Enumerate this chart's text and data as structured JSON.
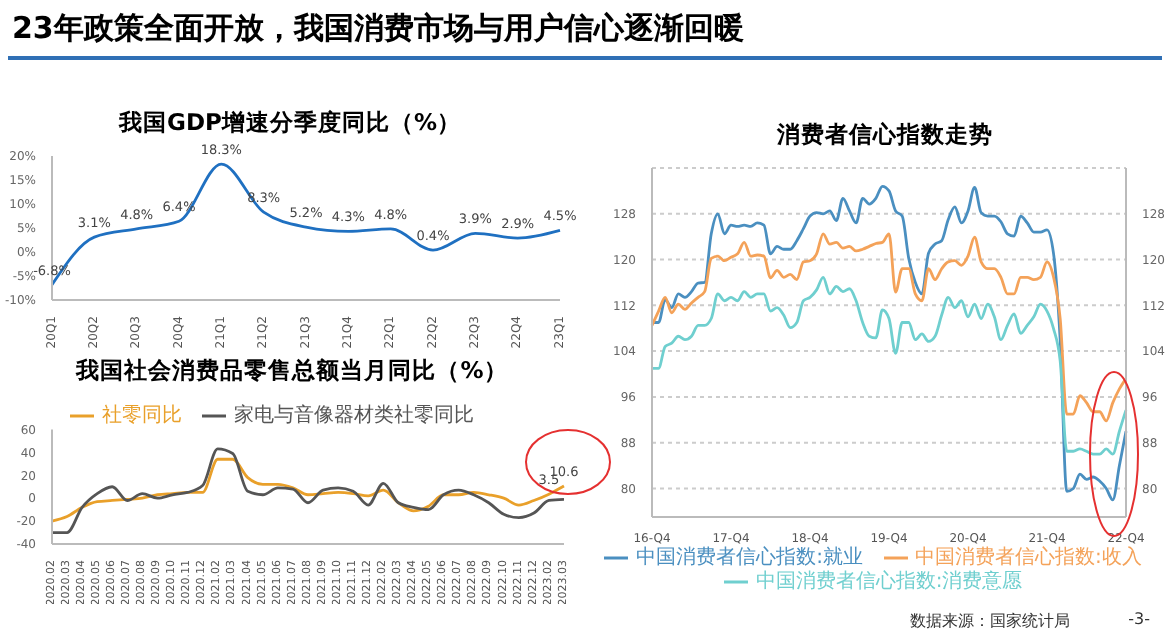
{
  "chart_data": [
    {
      "type": "line",
      "title": "我国GDP增速分季度同比（%）",
      "categories": [
        "20Q1",
        "20Q2",
        "20Q3",
        "20Q4",
        "21Q1",
        "21Q2",
        "21Q3",
        "21Q4",
        "22Q1",
        "22Q2",
        "22Q3",
        "22Q4",
        "23Q1"
      ],
      "series": [
        {
          "color": "#1f70c1",
          "values": [
            -6.8,
            3.1,
            4.8,
            6.4,
            18.3,
            8.3,
            5.2,
            4.3,
            4.8,
            0.4,
            3.9,
            2.9,
            4.5
          ],
          "value_labels": [
            "-6.8%",
            "3.1%",
            "4.8%",
            "6.4%",
            "18.3%",
            "8.3%",
            "5.2%",
            "4.3%",
            "4.8%",
            "0.4%",
            "3.9%",
            "2.9%",
            "4.5%"
          ]
        }
      ],
      "ylim": [
        -10,
        20
      ],
      "yticks": [
        {
          "value": -10,
          "label": "-10%"
        },
        {
          "value": -5,
          "label": "-5%"
        },
        {
          "value": 0,
          "label": "0%"
        },
        {
          "value": 5,
          "label": "5%"
        },
        {
          "value": 10,
          "label": "10%"
        },
        {
          "value": 15,
          "label": "15%"
        },
        {
          "value": 20,
          "label": "20%"
        }
      ],
      "marker": "none",
      "line_style": "solid"
    },
    {
      "type": "line",
      "title": "我国社会消费品零售总额当月同比（%）",
      "categories": [
        "2020.02",
        "2020.03",
        "2020.04",
        "2020.05",
        "2020.06",
        "2020.07",
        "2020.08",
        "2020.09",
        "2020.10",
        "2020.11",
        "2020.12",
        "2021.02",
        "2021.03",
        "2021.04",
        "2021.05",
        "2021.06",
        "2021.07",
        "2021.08",
        "2021.09",
        "2021.10",
        "2021.11",
        "2021.12",
        "2022.02",
        "2022.03",
        "2022.04",
        "2022.05",
        "2022.06",
        "2022.07",
        "2022.08",
        "2022.09",
        "2022.10",
        "2022.11",
        "2022.12",
        "2023.02",
        "2023.03"
      ],
      "series": [
        {
          "name": "社零同比",
          "color": "#e9a02a",
          "values": [
            -20,
            -16,
            -8,
            -3,
            -2,
            -1,
            0,
            3,
            4,
            5,
            5,
            34,
            34,
            18,
            12,
            12,
            9,
            3,
            4,
            5,
            4,
            2,
            7,
            -4,
            -11,
            -7,
            3,
            3,
            5,
            3,
            0,
            -6,
            -2,
            3.5,
            10.6
          ],
          "value_labels": [
            null,
            null,
            null,
            null,
            null,
            null,
            null,
            null,
            null,
            null,
            null,
            null,
            null,
            null,
            null,
            null,
            null,
            null,
            null,
            null,
            null,
            null,
            null,
            null,
            null,
            null,
            null,
            null,
            null,
            null,
            null,
            null,
            null,
            "3.5",
            "10.6"
          ]
        },
        {
          "name": "家电与音像器材类社零同比",
          "color": "#555555",
          "values": [
            -30,
            -30,
            -8,
            4,
            10,
            -2,
            4,
            0,
            3,
            5,
            11,
            43,
            39,
            6,
            3,
            9,
            8,
            -4,
            7,
            9,
            6,
            -6,
            13,
            -4,
            -8,
            -10,
            3,
            7,
            3,
            -4,
            -14,
            -17,
            -13,
            -2,
            -1
          ]
        }
      ],
      "ylim": [
        -40,
        60
      ],
      "yticks": [
        -40,
        -20,
        0,
        20,
        40,
        60
      ],
      "legend": "top",
      "marker": "none",
      "line_style": "solid"
    },
    {
      "type": "line",
      "title": "消费者信心指数走势",
      "categories": [
        "16-Q4",
        null,
        null,
        null,
        null,
        null,
        null,
        null,
        null,
        null,
        null,
        null,
        "17-Q4",
        null,
        null,
        null,
        null,
        null,
        null,
        null,
        null,
        null,
        null,
        null,
        "18-Q4",
        null,
        null,
        null,
        null,
        null,
        null,
        null,
        null,
        null,
        null,
        null,
        "19-Q4",
        null,
        null,
        null,
        null,
        null,
        null,
        null,
        null,
        null,
        null,
        null,
        "20-Q4",
        null,
        null,
        null,
        null,
        null,
        null,
        null,
        null,
        null,
        null,
        null,
        "21-Q4",
        null,
        null,
        null,
        null,
        null,
        null,
        null,
        null,
        null,
        null,
        null,
        "22-Q4"
      ],
      "series": [
        {
          "name": "中国消费者信心指数:就业",
          "color": "#4a8fc0",
          "values": [
            109,
            109,
            113,
            111.6,
            114,
            113.4,
            114.4,
            115.9,
            116,
            124.5,
            128,
            124.5,
            126,
            125.8,
            126,
            125.8,
            126.4,
            126,
            121,
            122.3,
            121.8,
            121.8,
            123.3,
            125.4,
            127.6,
            128.2,
            128,
            128.5,
            126.8,
            130.7,
            128.5,
            126.4,
            130.7,
            129.7,
            130.7,
            132.8,
            132,
            128.5,
            127.6,
            120.2,
            116,
            114,
            121.1,
            122.7,
            123.3,
            127,
            129.2,
            126.4,
            128.5,
            132.6,
            128.2,
            127.6,
            127.6,
            126.6,
            124.5,
            124.1,
            127.6,
            126.4,
            124.8,
            124.8,
            125.2,
            121,
            106,
            79.5,
            80,
            82.5,
            81.6,
            82,
            81.3,
            80,
            78,
            84,
            90
          ]
        },
        {
          "name": "中国消费者信心指数:收入",
          "color": "#f4a259",
          "values": [
            108.5,
            111,
            113.4,
            110.7,
            112.2,
            111.3,
            112.4,
            113.4,
            114.4,
            120.2,
            120.6,
            119.8,
            120.4,
            121,
            123,
            120.6,
            120.8,
            120.6,
            116.8,
            118.1,
            116.9,
            117.4,
            116.5,
            119.6,
            119.8,
            121,
            124.5,
            122.7,
            123,
            122,
            122.3,
            121.5,
            121.8,
            122.3,
            122.8,
            123,
            124.5,
            114.3,
            118.4,
            118.4,
            114,
            112.8,
            118.4,
            116.5,
            118.4,
            119.6,
            119.8,
            119,
            120.6,
            123.9,
            119.6,
            118.4,
            118.4,
            116.9,
            114,
            114,
            116.9,
            116.9,
            116.5,
            116.9,
            119.6,
            116.9,
            109.7,
            93,
            93,
            96.2,
            95,
            93.4,
            93.4,
            91.8,
            95,
            97.4,
            99.2
          ]
        },
        {
          "name": "中国消费者信心指数:消费意愿",
          "color": "#6fcfcf",
          "values": [
            101,
            101,
            104.8,
            105.4,
            106.6,
            106,
            106.6,
            108.5,
            108.5,
            109.7,
            114,
            112.8,
            113.4,
            112.8,
            114.4,
            113.4,
            114,
            114,
            111,
            111.6,
            110.3,
            108.1,
            109,
            112.8,
            113.4,
            114.7,
            116.9,
            114,
            115.3,
            114.4,
            114.9,
            112.8,
            109,
            106.6,
            106.3,
            111.2,
            109.7,
            103.6,
            109,
            109,
            106,
            107,
            105.7,
            106.6,
            110.3,
            113.4,
            111.6,
            112.8,
            110,
            112.2,
            109.7,
            112.2,
            110,
            106,
            108.5,
            110.5,
            107.1,
            108.5,
            110,
            112.2,
            111,
            107.9,
            102.3,
            86.5,
            86.5,
            86.9,
            86.5,
            86,
            86,
            86.9,
            86,
            90,
            93.7
          ]
        }
      ],
      "ylim": [
        75,
        136
      ],
      "yticks": [
        80,
        88,
        96,
        104,
        112,
        120,
        128
      ],
      "y2lim": [
        75,
        136
      ],
      "y2ticks": [
        80,
        88,
        96,
        104,
        112,
        120,
        128
      ],
      "grid": "y",
      "legend": "bottom",
      "marker": "none",
      "line_style": "solid"
    },
    {
      "type": "other",
      "title": "23年政策全面开放，我国消费市场与用户信心逐渐回暖",
      "annotations": [
        "数据来源：国家统计局",
        "-3-"
      ]
    }
  ]
}
